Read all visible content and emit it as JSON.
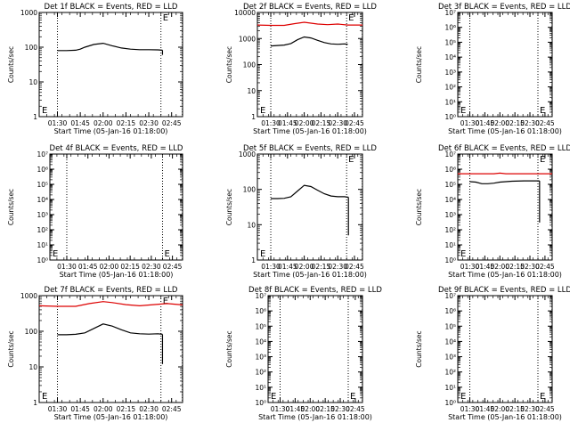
{
  "chart_data": [
    {
      "type": "line",
      "title": "Det 1f BLACK = Events, RED = LLD",
      "xlabel": "Start Time (05-Jan-16 01:18:00)",
      "ylabel": "Counts/sec",
      "yscale": "log",
      "ylim": [
        1,
        1000
      ],
      "yticks": [
        "1",
        "10",
        "100",
        "1000"
      ],
      "xlim": [
        1.3,
        2.87
      ],
      "xticks": [
        "01:30",
        "01:45",
        "02:00",
        "02:15",
        "02:30",
        "02:45"
      ],
      "marker_lines": [
        1.5,
        2.633,
        2.867
      ],
      "marker_label": {
        "text": "E",
        "x": 2.633
      },
      "series": [
        {
          "color": "#000000",
          "x": [
            1.5,
            1.6,
            1.7,
            1.75,
            1.8,
            1.9,
            2.0,
            2.1,
            2.2,
            2.3,
            2.4,
            2.5,
            2.6,
            2.65
          ],
          "y": [
            80,
            80,
            82,
            88,
            100,
            120,
            130,
            110,
            95,
            88,
            85,
            85,
            84,
            82
          ],
          "drop": [
            2.65,
            60
          ]
        }
      ]
    },
    {
      "type": "line",
      "title": "Det 2f BLACK = Events, RED = LLD",
      "xlabel": "Start Time (05-Jan-16 01:18:00)",
      "ylabel": "Counts/sec",
      "yscale": "log",
      "ylim": [
        1,
        10000
      ],
      "yticks": [
        "1",
        "10",
        "100",
        "1000",
        "10000"
      ],
      "xlim": [
        1.3,
        2.87
      ],
      "xticks": [
        "01:30",
        "01:45",
        "02:00",
        "02:15",
        "02:30",
        "02:45"
      ],
      "marker_lines": [
        1.5,
        2.633,
        2.867
      ],
      "marker_label": {
        "text": "E",
        "x": 2.633
      },
      "series": [
        {
          "color": "#dd0000",
          "x": [
            1.3,
            1.5,
            1.7,
            1.85,
            2.0,
            2.1,
            2.2,
            2.35,
            2.5,
            2.65,
            2.87
          ],
          "y": [
            3300,
            3200,
            3200,
            3700,
            4200,
            3900,
            3600,
            3400,
            3600,
            3300,
            3300
          ]
        },
        {
          "color": "#000000",
          "x": [
            1.5,
            1.6,
            1.7,
            1.8,
            1.9,
            2.0,
            2.1,
            2.2,
            2.3,
            2.4,
            2.5,
            2.6,
            2.65
          ],
          "y": [
            520,
            540,
            560,
            640,
            900,
            1150,
            1050,
            850,
            700,
            620,
            600,
            620,
            600
          ]
        }
      ]
    },
    {
      "type": "line",
      "title": "Det 3f BLACK = Events, RED = LLD",
      "xlabel": "Start Time (05-Jan-16 01:18:00)",
      "ylabel": "Counts/sec",
      "yscale": "log",
      "ylim": [
        1,
        10000000
      ],
      "yticks": [
        "10⁰",
        "10¹",
        "10²",
        "10³",
        "10⁴",
        "10⁵",
        "10⁶",
        "10⁷"
      ],
      "xlim": [
        1.3,
        2.87
      ],
      "xticks": [
        "01:30",
        "01:45",
        "02:00",
        "02:15",
        "02:30",
        "02:45"
      ],
      "marker_lines": [
        1.5,
        2.633,
        2.867
      ],
      "marker_label": {
        "text": "E",
        "x": 2.633
      },
      "series": []
    },
    {
      "type": "line",
      "title": "Det 4f BLACK = Events, RED = LLD",
      "xlabel": "Start Time (05-Jan-16 01:18:00)",
      "ylabel": "Counts/sec",
      "yscale": "log",
      "ylim": [
        1,
        10000000
      ],
      "yticks": [
        "10⁰",
        "10¹",
        "10²",
        "10³",
        "10⁴",
        "10⁵",
        "10⁶",
        "10⁷"
      ],
      "xlim": [
        1.3,
        2.87
      ],
      "xticks": [
        "01:30",
        "01:45",
        "02:00",
        "02:15",
        "02:30",
        "02:45"
      ],
      "marker_lines": [
        1.5,
        2.633,
        2.867
      ],
      "marker_label": {
        "text": "E",
        "x": 2.633
      },
      "series": []
    },
    {
      "type": "line",
      "title": "Det 5f BLACK = Events, RED = LLD",
      "xlabel": "Start Time (05-Jan-16 01:18:00)",
      "ylabel": "Counts/sec",
      "yscale": "log",
      "ylim": [
        1,
        1000
      ],
      "yticks": [
        "1",
        "10",
        "100",
        "1000"
      ],
      "xlim": [
        1.3,
        2.87
      ],
      "xticks": [
        "01:30",
        "01:45",
        "02:00",
        "02:15",
        "02:30",
        "02:45"
      ],
      "marker_lines": [
        1.5,
        2.633,
        2.867
      ],
      "marker_label": {
        "text": "E",
        "x": 2.633
      },
      "series": [
        {
          "color": "#000000",
          "x": [
            1.5,
            1.6,
            1.7,
            1.8,
            1.9,
            2.0,
            2.1,
            2.2,
            2.3,
            2.4,
            2.5,
            2.6,
            2.66
          ],
          "y": [
            55,
            55,
            56,
            62,
            90,
            130,
            120,
            95,
            75,
            65,
            62,
            62,
            60
          ],
          "drop": [
            2.66,
            5
          ]
        }
      ]
    },
    {
      "type": "line",
      "title": "Det 6f BLACK = Events, RED = LLD",
      "xlabel": "Start Time (05-Jan-16 01:18:00)",
      "ylabel": "Counts/sec",
      "yscale": "log",
      "ylim": [
        1,
        10000000
      ],
      "yticks": [
        "10⁰",
        "10¹",
        "10²",
        "10³",
        "10⁴",
        "10⁵",
        "10⁶",
        "10⁷"
      ],
      "xlim": [
        1.3,
        2.87
      ],
      "xticks": [
        "01:30",
        "01:45",
        "02:00",
        "02:15",
        "02:30",
        "02:45"
      ],
      "marker_lines": [
        1.5,
        2.633,
        2.867
      ],
      "marker_label": {
        "text": "E",
        "x": 2.633
      },
      "series": [
        {
          "color": "#dd0000",
          "x": [
            1.3,
            1.6,
            1.9,
            2.0,
            2.1,
            2.4,
            2.87
          ],
          "y": [
            500000,
            500000,
            500000,
            550000,
            500000,
            500000,
            500000
          ]
        },
        {
          "color": "#000000",
          "x": [
            1.5,
            1.6,
            1.7,
            1.8,
            1.9,
            2.0,
            2.2,
            2.4,
            2.6,
            2.66
          ],
          "y": [
            150000,
            140000,
            110000,
            110000,
            120000,
            140000,
            160000,
            170000,
            170000,
            170000
          ],
          "drop": [
            2.66,
            300
          ]
        }
      ]
    },
    {
      "type": "line",
      "title": "Det 7f BLACK = Events, RED = LLD",
      "xlabel": "Start Time (05-Jan-16 01:18:00)",
      "ylabel": "Counts/sec",
      "yscale": "log",
      "ylim": [
        1,
        1000
      ],
      "yticks": [
        "1",
        "10",
        "100",
        "1000"
      ],
      "xlim": [
        1.3,
        2.87
      ],
      "xticks": [
        "01:30",
        "01:45",
        "02:00",
        "02:15",
        "02:30",
        "02:45"
      ],
      "marker_lines": [
        1.5,
        2.633,
        2.867
      ],
      "marker_label": {
        "text": "E",
        "x": 2.633
      },
      "series": [
        {
          "color": "#dd0000",
          "x": [
            1.3,
            1.5,
            1.7,
            1.85,
            2.0,
            2.1,
            2.25,
            2.4,
            2.55,
            2.7,
            2.87
          ],
          "y": [
            520,
            500,
            500,
            600,
            680,
            640,
            560,
            520,
            560,
            600,
            550
          ]
        },
        {
          "color": "#000000",
          "x": [
            1.5,
            1.6,
            1.7,
            1.8,
            1.9,
            2.0,
            2.1,
            2.2,
            2.3,
            2.4,
            2.5,
            2.6,
            2.65
          ],
          "y": [
            80,
            80,
            82,
            90,
            120,
            160,
            140,
            110,
            90,
            85,
            83,
            85,
            82
          ],
          "drop": [
            2.65,
            12
          ]
        }
      ]
    },
    {
      "type": "line",
      "title": "Det 8f BLACK = Events, RED = LLD",
      "xlabel": "Start Time (05-Jan-16 01:18:00)",
      "ylabel": "Counts/sec",
      "yscale": "log",
      "ylim": [
        1,
        10000000
      ],
      "yticks": [
        "10⁰",
        "10¹",
        "10²",
        "10³",
        "10⁴",
        "10⁵",
        "10⁶",
        "10⁷"
      ],
      "xlim": [
        1.3,
        2.87
      ],
      "xticks": [
        "01:30",
        "01:45",
        "02:00",
        "02:15",
        "02:30",
        "02:45"
      ],
      "marker_lines": [
        1.5,
        2.633,
        2.867
      ],
      "marker_label": {
        "text": "E",
        "x": 2.633
      },
      "series": []
    },
    {
      "type": "line",
      "title": "Det 9f BLACK = Events, RED = LLD",
      "xlabel": "Start Time (05-Jan-16 01:18:00)",
      "ylabel": "Counts/sec",
      "yscale": "log",
      "ylim": [
        1,
        10000000
      ],
      "yticks": [
        "10⁰",
        "10¹",
        "10²",
        "10³",
        "10⁴",
        "10⁵",
        "10⁶",
        "10⁷"
      ],
      "xlim": [
        1.3,
        2.87
      ],
      "xticks": [
        "01:30",
        "01:45",
        "02:00",
        "02:15",
        "02:30",
        "02:45"
      ],
      "marker_lines": [
        1.5,
        2.633,
        2.867
      ],
      "marker_label": {
        "text": "E",
        "x": 2.633
      },
      "series": []
    }
  ]
}
